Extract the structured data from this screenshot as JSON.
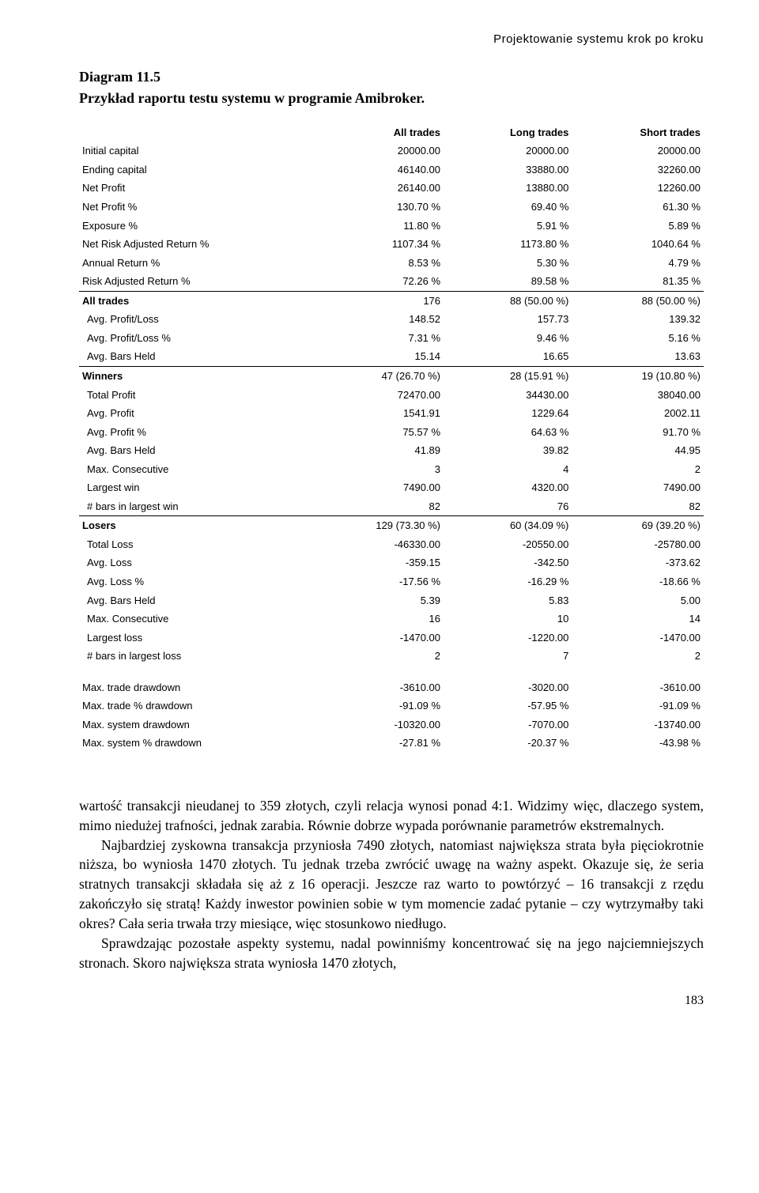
{
  "running_header": "Projektowanie systemu krok po kroku",
  "figure": {
    "label": "Diagram 11.5",
    "caption": "Przykład raportu testu systemu w programie Amibroker."
  },
  "table": {
    "headers": [
      "",
      "All trades",
      "Long trades",
      "Short trades"
    ],
    "groups": [
      {
        "rows": [
          {
            "label": "Initial capital",
            "vals": [
              "20000.00",
              "20000.00",
              "20000.00"
            ]
          },
          {
            "label": "Ending capital",
            "vals": [
              "46140.00",
              "33880.00",
              "32260.00"
            ]
          },
          {
            "label": "Net Profit",
            "vals": [
              "26140.00",
              "13880.00",
              "12260.00"
            ]
          },
          {
            "label": "Net Profit %",
            "vals": [
              "130.70 %",
              "69.40 %",
              "61.30 %"
            ]
          },
          {
            "label": "Exposure %",
            "vals": [
              "11.80 %",
              "5.91 %",
              "5.89 %"
            ]
          },
          {
            "label": "Net Risk Adjusted Return %",
            "vals": [
              "1107.34 %",
              "1173.80 %",
              "1040.64 %"
            ]
          },
          {
            "label": "Annual Return %",
            "vals": [
              "8.53 %",
              "5.30 %",
              "4.79 %"
            ]
          },
          {
            "label": "Risk Adjusted Return %",
            "vals": [
              "72.26 %",
              "89.58 %",
              "81.35 %"
            ]
          }
        ]
      },
      {
        "section": true,
        "rows": [
          {
            "label": "All trades",
            "bold": true,
            "vals": [
              "176",
              "88 (50.00 %)",
              "88 (50.00 %)"
            ]
          },
          {
            "label": "Avg. Profit/Loss",
            "indent": true,
            "vals": [
              "148.52",
              "157.73",
              "139.32"
            ]
          },
          {
            "label": "Avg. Profit/Loss %",
            "indent": true,
            "vals": [
              "7.31 %",
              "9.46 %",
              "5.16 %"
            ]
          },
          {
            "label": "Avg. Bars Held",
            "indent": true,
            "vals": [
              "15.14",
              "16.65",
              "13.63"
            ]
          }
        ]
      },
      {
        "section": true,
        "rows": [
          {
            "label": "Winners",
            "bold": true,
            "vals": [
              "47 (26.70 %)",
              "28 (15.91 %)",
              "19 (10.80 %)"
            ]
          },
          {
            "label": "Total Profit",
            "indent": true,
            "vals": [
              "72470.00",
              "34430.00",
              "38040.00"
            ]
          },
          {
            "label": "Avg. Profit",
            "indent": true,
            "vals": [
              "1541.91",
              "1229.64",
              "2002.11"
            ]
          },
          {
            "label": "Avg. Profit %",
            "indent": true,
            "vals": [
              "75.57 %",
              "64.63 %",
              "91.70 %"
            ]
          },
          {
            "label": "Avg. Bars Held",
            "indent": true,
            "vals": [
              "41.89",
              "39.82",
              "44.95"
            ]
          },
          {
            "label": "Max. Consecutive",
            "indent": true,
            "vals": [
              "3",
              "4",
              "2"
            ]
          },
          {
            "label": "Largest win",
            "indent": true,
            "vals": [
              "7490.00",
              "4320.00",
              "7490.00"
            ]
          },
          {
            "label": "# bars in largest win",
            "indent": true,
            "vals": [
              "82",
              "76",
              "82"
            ]
          }
        ]
      },
      {
        "section": true,
        "rows": [
          {
            "label": "Losers",
            "bold": true,
            "vals": [
              "129 (73.30 %)",
              "60 (34.09 %)",
              "69 (39.20 %)"
            ]
          },
          {
            "label": "Total Loss",
            "indent": true,
            "vals": [
              "-46330.00",
              "-20550.00",
              "-25780.00"
            ]
          },
          {
            "label": "Avg. Loss",
            "indent": true,
            "vals": [
              "-359.15",
              "-342.50",
              "-373.62"
            ]
          },
          {
            "label": "Avg. Loss %",
            "indent": true,
            "vals": [
              "-17.56 %",
              "-16.29 %",
              "-18.66 %"
            ]
          },
          {
            "label": "Avg. Bars Held",
            "indent": true,
            "vals": [
              "5.39",
              "5.83",
              "5.00"
            ]
          },
          {
            "label": "Max. Consecutive",
            "indent": true,
            "vals": [
              "16",
              "10",
              "14"
            ]
          },
          {
            "label": "Largest loss",
            "indent": true,
            "vals": [
              "-1470.00",
              "-1220.00",
              "-1470.00"
            ]
          },
          {
            "label": "# bars in largest loss",
            "indent": true,
            "vals": [
              "2",
              "7",
              "2"
            ]
          }
        ]
      },
      {
        "gap": true,
        "rows": [
          {
            "label": "Max. trade drawdown",
            "vals": [
              "-3610.00",
              "-3020.00",
              "-3610.00"
            ]
          },
          {
            "label": "Max. trade % drawdown",
            "vals": [
              "-91.09 %",
              "-57.95 %",
              "-91.09 %"
            ]
          },
          {
            "label": "Max. system drawdown",
            "vals": [
              "-10320.00",
              "-7070.00",
              "-13740.00"
            ]
          },
          {
            "label": "Max. system % drawdown",
            "vals": [
              "-27.81 %",
              "-20.37 %",
              "-43.98 %"
            ]
          }
        ]
      }
    ]
  },
  "body": {
    "p1": "wartość transakcji nieudanej to 359 złotych, czyli relacja wynosi ponad 4:1. Widzimy więc, dlaczego system, mimo niedużej trafności, jednak zarabia. Równie dobrze wypada porównanie parametrów ekstremalnych.",
    "p2": "Najbardziej zyskowna transakcja przyniosła 7490 złotych, natomiast największa strata była pięciokrotnie niższa, bo wyniosła 1470 złotych. Tu jednak trzeba zwrócić uwagę na ważny aspekt. Okazuje się, że seria stratnych transakcji składała się aż z 16 operacji. Jeszcze raz warto to powtórzyć – 16 transakcji z rzędu zakończyło się stratą! Każdy inwestor powinien sobie w tym momencie zadać pytanie – czy wytrzymałby taki okres? Cała seria trwała trzy miesiące, więc stosunkowo niedługo.",
    "p3": "Sprawdzając pozostałe aspekty systemu, nadal powinniśmy koncentrować się na jego najciemniejszych stronach. Skoro największa strata wyniosła 1470 złotych,"
  },
  "page_number": "183"
}
